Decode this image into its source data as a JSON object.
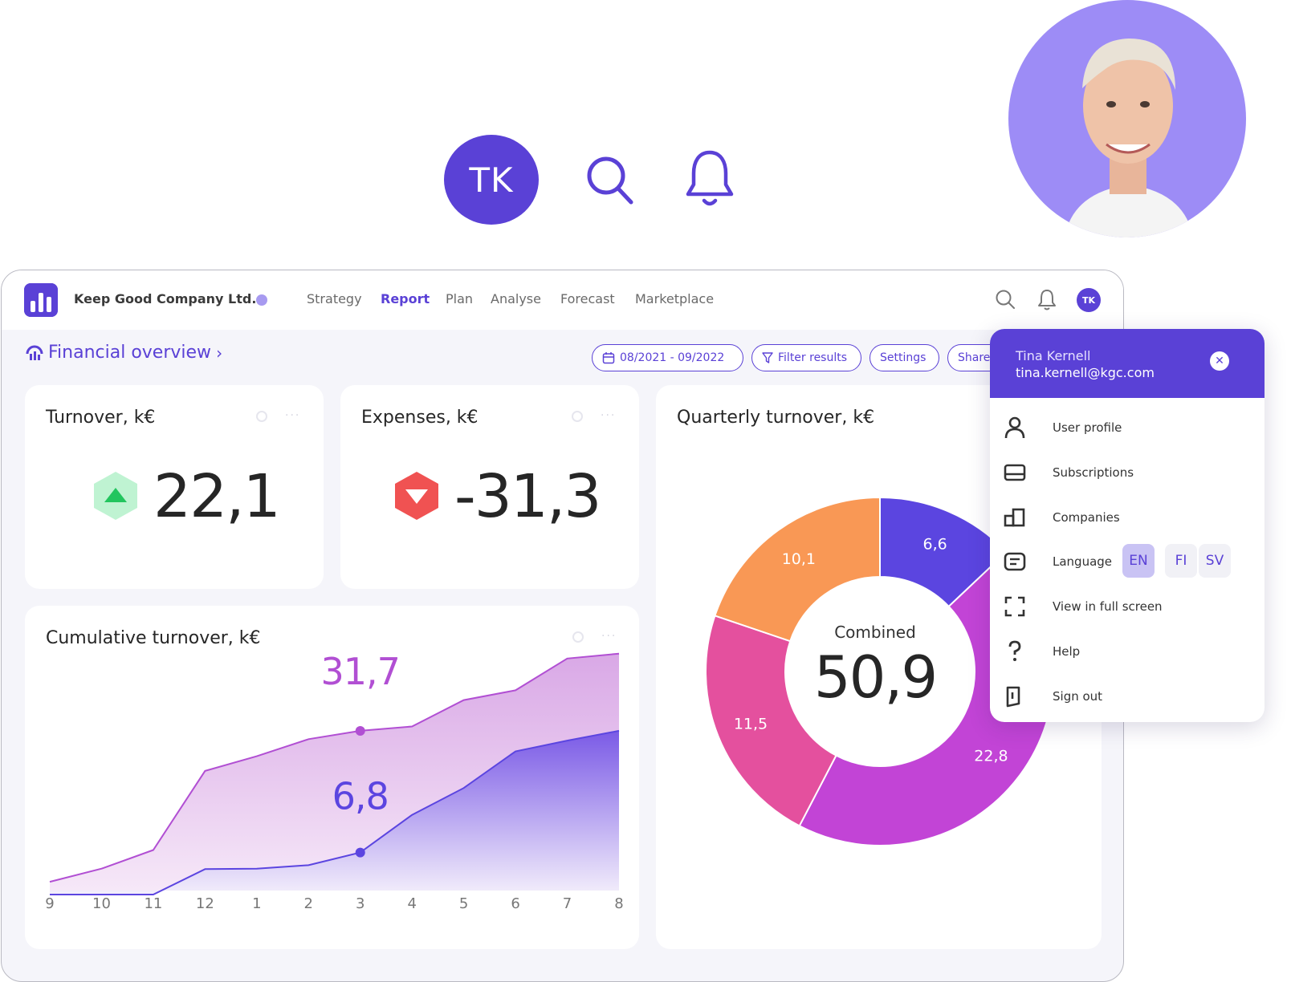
{
  "hero": {
    "avatar_initials": "TK"
  },
  "header": {
    "company": "Keep Good Company Ltd.",
    "nav": [
      "Strategy",
      "Report",
      "Plan",
      "Analyse",
      "Forecast",
      "Marketplace"
    ],
    "active_nav": "Report",
    "avatar_initials": "TK"
  },
  "toolbar": {
    "page_title": "Financial overview",
    "date_range": "08/2021 - 09/2022",
    "filter_label": "Filter results",
    "settings_label": "Settings",
    "share_label": "Share"
  },
  "cards": {
    "turnover": {
      "title": "Turnover, k€",
      "value": "22,1"
    },
    "expenses": {
      "title": "Expenses, k€",
      "value": "-31,3"
    },
    "cumulative": {
      "title": "Cumulative turnover, k€"
    },
    "quarterly": {
      "title": "Quarterly turnover, k€"
    }
  },
  "menu": {
    "name": "Tina Kernell",
    "email": "tina.kernell@kgc.com",
    "items": [
      "User profile",
      "Subscriptions",
      "Companies",
      "Language",
      "View in full screen",
      "Help",
      "Sign out"
    ],
    "languages": [
      "EN",
      "FI",
      "SV"
    ],
    "selected_language": "EN"
  },
  "colors": {
    "accent": "#5a41d6",
    "up": "#22c55e",
    "down": "#f05252",
    "orange": "#f99855",
    "pink": "#e4509e",
    "magenta": "#c244d6",
    "violet": "#5b45e0"
  },
  "chart_data": [
    {
      "type": "area",
      "title": "Cumulative turnover, k€",
      "x": [
        "9",
        "10",
        "11",
        "12",
        "1",
        "2",
        "3",
        "4",
        "5",
        "6",
        "7",
        "8"
      ],
      "series": [
        {
          "values": [
            0.8,
            3.5,
            7.3,
            23.5,
            26.5,
            30.0,
            31.7,
            32.6,
            38.0,
            40.0,
            46.5,
            47.5
          ],
          "highlight_label": "31,7"
        },
        {
          "values": [
            -1.8,
            -1.8,
            -1.8,
            3.4,
            3.5,
            4.2,
            6.8,
            14.5,
            20.0,
            27.5,
            29.7,
            31.7
          ],
          "highlight_label": "6,8"
        }
      ],
      "highlight_index": 6
    },
    {
      "type": "pie",
      "title": "Quarterly turnover, k€",
      "center_label": "Combined",
      "center_value": "50,9",
      "slices": [
        {
          "label": "6,6",
          "value": 6.6,
          "color": "#5b45e0"
        },
        {
          "label": "22,8",
          "value": 22.8,
          "color": "#c244d6"
        },
        {
          "label": "11,5",
          "value": 11.5,
          "color": "#e4509e"
        },
        {
          "label": "10,1",
          "value": 10.1,
          "color": "#f99855"
        }
      ]
    }
  ]
}
